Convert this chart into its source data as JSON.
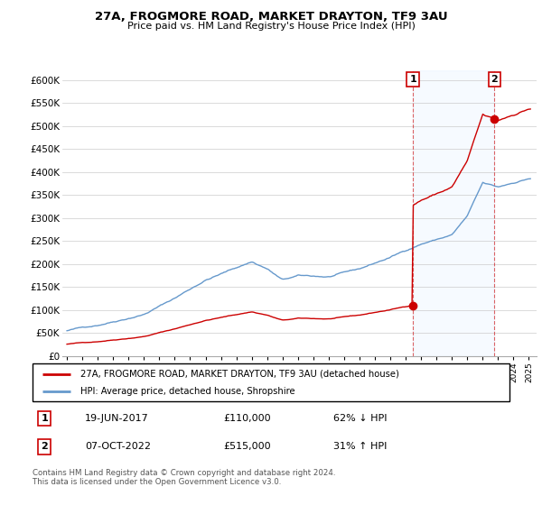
{
  "title": "27A, FROGMORE ROAD, MARKET DRAYTON, TF9 3AU",
  "subtitle": "Price paid vs. HM Land Registry's House Price Index (HPI)",
  "legend_line1": "27A, FROGMORE ROAD, MARKET DRAYTON, TF9 3AU (detached house)",
  "legend_line2": "HPI: Average price, detached house, Shropshire",
  "annotation1_date": "19-JUN-2017",
  "annotation1_price": "£110,000",
  "annotation1_pct": "62% ↓ HPI",
  "annotation2_date": "07-OCT-2022",
  "annotation2_price": "£515,000",
  "annotation2_pct": "31% ↑ HPI",
  "footnote": "Contains HM Land Registry data © Crown copyright and database right 2024.\nThis data is licensed under the Open Government Licence v3.0.",
  "hpi_color": "#6699cc",
  "price_color": "#cc0000",
  "shade_color": "#ddeeff",
  "ylim": [
    0,
    620000
  ],
  "yticks": [
    0,
    50000,
    100000,
    150000,
    200000,
    250000,
    300000,
    350000,
    400000,
    450000,
    500000,
    550000,
    600000
  ],
  "ytick_labels": [
    "£0",
    "£50K",
    "£100K",
    "£150K",
    "£200K",
    "£250K",
    "£300K",
    "£350K",
    "£400K",
    "£450K",
    "£500K",
    "£550K",
    "£600K"
  ],
  "sale1_year": 2017.47,
  "sale1_price": 110000,
  "sale2_year": 2022.77,
  "sale2_price": 515000,
  "xmin": 1995,
  "xmax": 2025
}
